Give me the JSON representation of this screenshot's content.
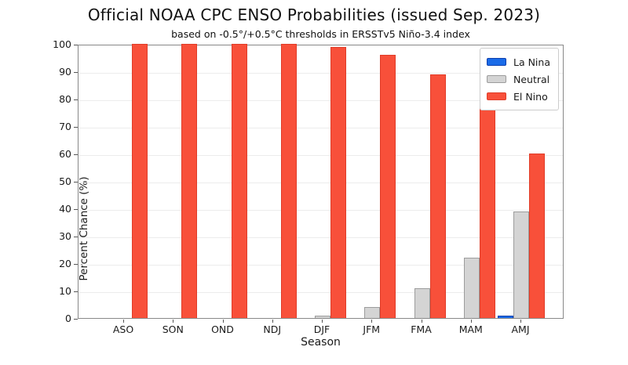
{
  "chart_data": {
    "type": "bar",
    "title": "Official NOAA CPC ENSO Probabilities (issued Sep. 2023)",
    "subtitle": "based on -0.5°/+0.5°C thresholds in ERSSTv5 Niño-3.4 index",
    "xlabel": "Season",
    "ylabel": "Percent Chance (%)",
    "ylim": [
      0,
      100
    ],
    "yticks": [
      0,
      10,
      20,
      30,
      40,
      50,
      60,
      70,
      80,
      90,
      100
    ],
    "grid": true,
    "legend_position": "upper right",
    "categories": [
      "ASO",
      "SON",
      "OND",
      "NDJ",
      "DJF",
      "JFM",
      "FMA",
      "MAM",
      "AMJ"
    ],
    "series": [
      {
        "name": "La Nina",
        "color": "#1a6be8",
        "edge": "#0d3fae",
        "values": [
          0,
          0,
          0,
          0,
          0,
          0,
          0,
          0,
          1
        ]
      },
      {
        "name": "Neutral",
        "color": "#d4d4d4",
        "edge": "#9c9c9c",
        "values": [
          0,
          0,
          0,
          0,
          1,
          4,
          11,
          22,
          39
        ]
      },
      {
        "name": "El Nino",
        "color": "#f8503a",
        "edge": "#e03c28",
        "values": [
          100,
          100,
          100,
          100,
          99,
          96,
          89,
          78,
          60
        ]
      }
    ]
  }
}
